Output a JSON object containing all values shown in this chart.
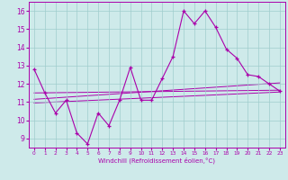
{
  "xlabel": "Windchill (Refroidissement éolien,°C)",
  "background_color": "#ceeaea",
  "grid_color": "#a0cccc",
  "line_color": "#aa00aa",
  "xlim": [
    -0.5,
    23.5
  ],
  "ylim": [
    8.5,
    16.5
  ],
  "yticks": [
    9,
    10,
    11,
    12,
    13,
    14,
    15,
    16
  ],
  "xticks": [
    0,
    1,
    2,
    3,
    4,
    5,
    6,
    7,
    8,
    9,
    10,
    11,
    12,
    13,
    14,
    15,
    16,
    17,
    18,
    19,
    20,
    21,
    22,
    23
  ],
  "series1_x": [
    0,
    1,
    2,
    3,
    4,
    5,
    6,
    7,
    8,
    9,
    10,
    11,
    12,
    13,
    14,
    15,
    16,
    17,
    18,
    19,
    20,
    21,
    22,
    23
  ],
  "series1_y": [
    12.8,
    11.5,
    10.4,
    11.1,
    9.3,
    8.7,
    10.4,
    9.7,
    11.1,
    12.9,
    11.1,
    11.1,
    12.3,
    13.5,
    16.0,
    15.3,
    16.0,
    15.1,
    13.9,
    13.4,
    12.5,
    12.4,
    12.0,
    11.6
  ],
  "series2_x": [
    0,
    23
  ],
  "series2_y": [
    11.5,
    11.65
  ],
  "series3_x": [
    0,
    23
  ],
  "series3_y": [
    11.15,
    12.05
  ],
  "series4_x": [
    0,
    23
  ],
  "series4_y": [
    10.95,
    11.55
  ]
}
